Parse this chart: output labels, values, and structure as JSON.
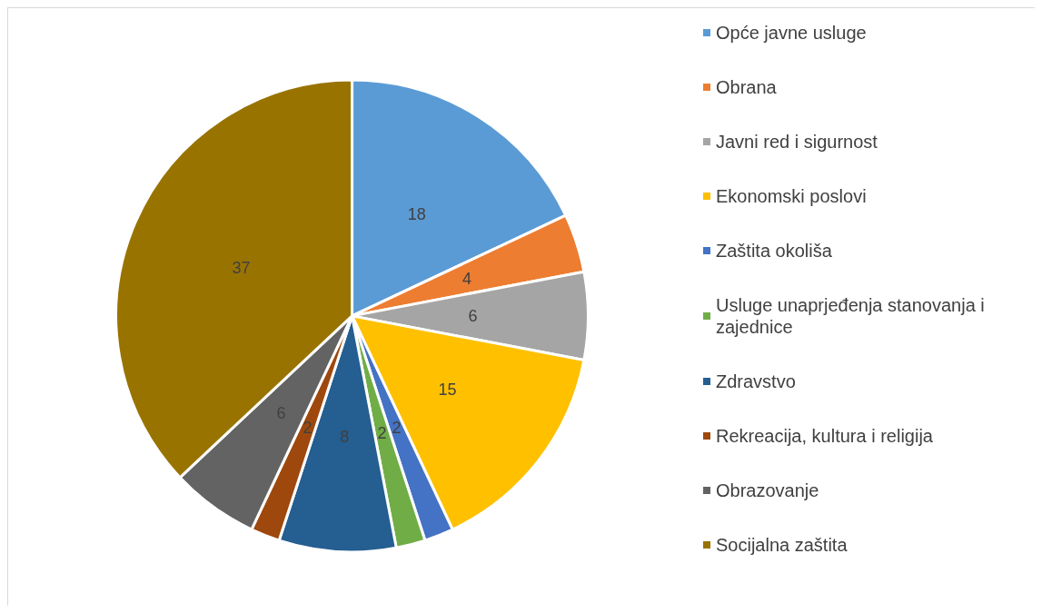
{
  "chart_data": {
    "type": "pie",
    "categories": [
      "Opće javne usluge",
      "Obrana",
      "Javni red i sigurnost",
      "Ekonomski poslovi",
      "Zaštita okoliša",
      "Usluge unaprjeđenja stanovanja i zajednice",
      "Zdravstvo",
      "Rekreacija, kultura i religija",
      "Obrazovanje",
      "Socijalna zaštita"
    ],
    "values": [
      18,
      4,
      6,
      15,
      2,
      2,
      8,
      2,
      6,
      37
    ],
    "colors": [
      "#5b9bd5",
      "#ed7d31",
      "#a5a5a5",
      "#ffc000",
      "#4472c4",
      "#70ad47",
      "#255e91",
      "#9e480e",
      "#636363",
      "#997300"
    ],
    "data_labels": true,
    "legend": "right"
  }
}
